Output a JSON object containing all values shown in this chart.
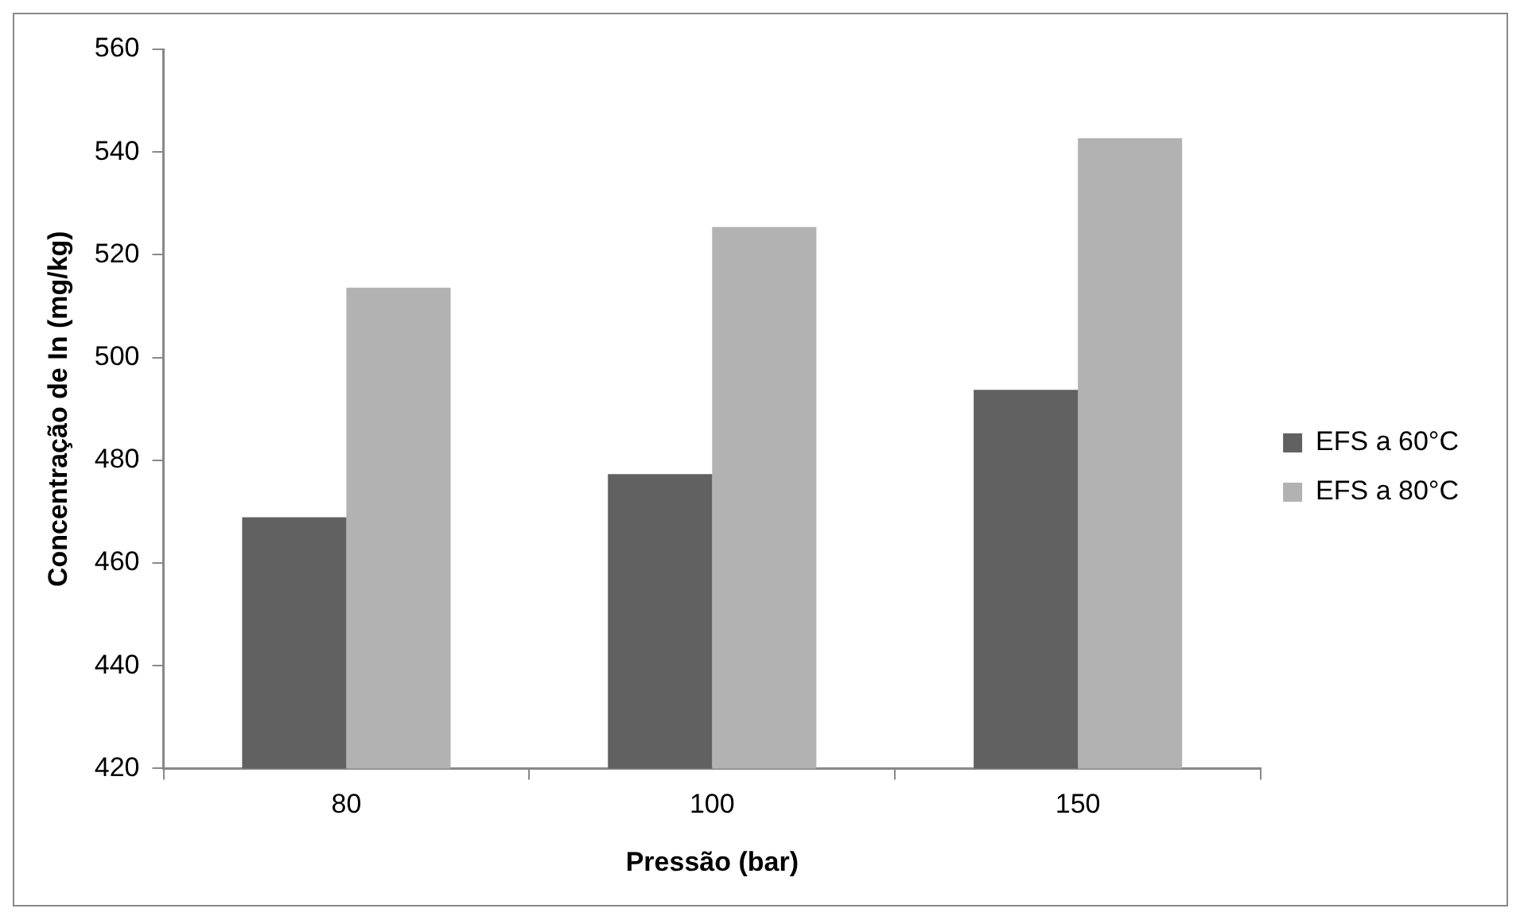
{
  "chart_data": {
    "type": "bar",
    "xlabel": "Pressão (bar)",
    "ylabel": "Concentração de In (mg/kg)",
    "categories": [
      "80",
      "100",
      "150"
    ],
    "series": [
      {
        "name": "EFS a 60°C",
        "color": "#616161",
        "values": [
          468.9,
          477.3,
          493.7
        ]
      },
      {
        "name": "EFS a 80°C",
        "color": "#b2b2b2",
        "values": [
          513.6,
          525.4,
          542.7
        ]
      }
    ],
    "ylim": [
      420,
      560
    ],
    "yticks": [
      420,
      440,
      460,
      480,
      500,
      520,
      540,
      560
    ],
    "grid": false,
    "legend": "right"
  }
}
